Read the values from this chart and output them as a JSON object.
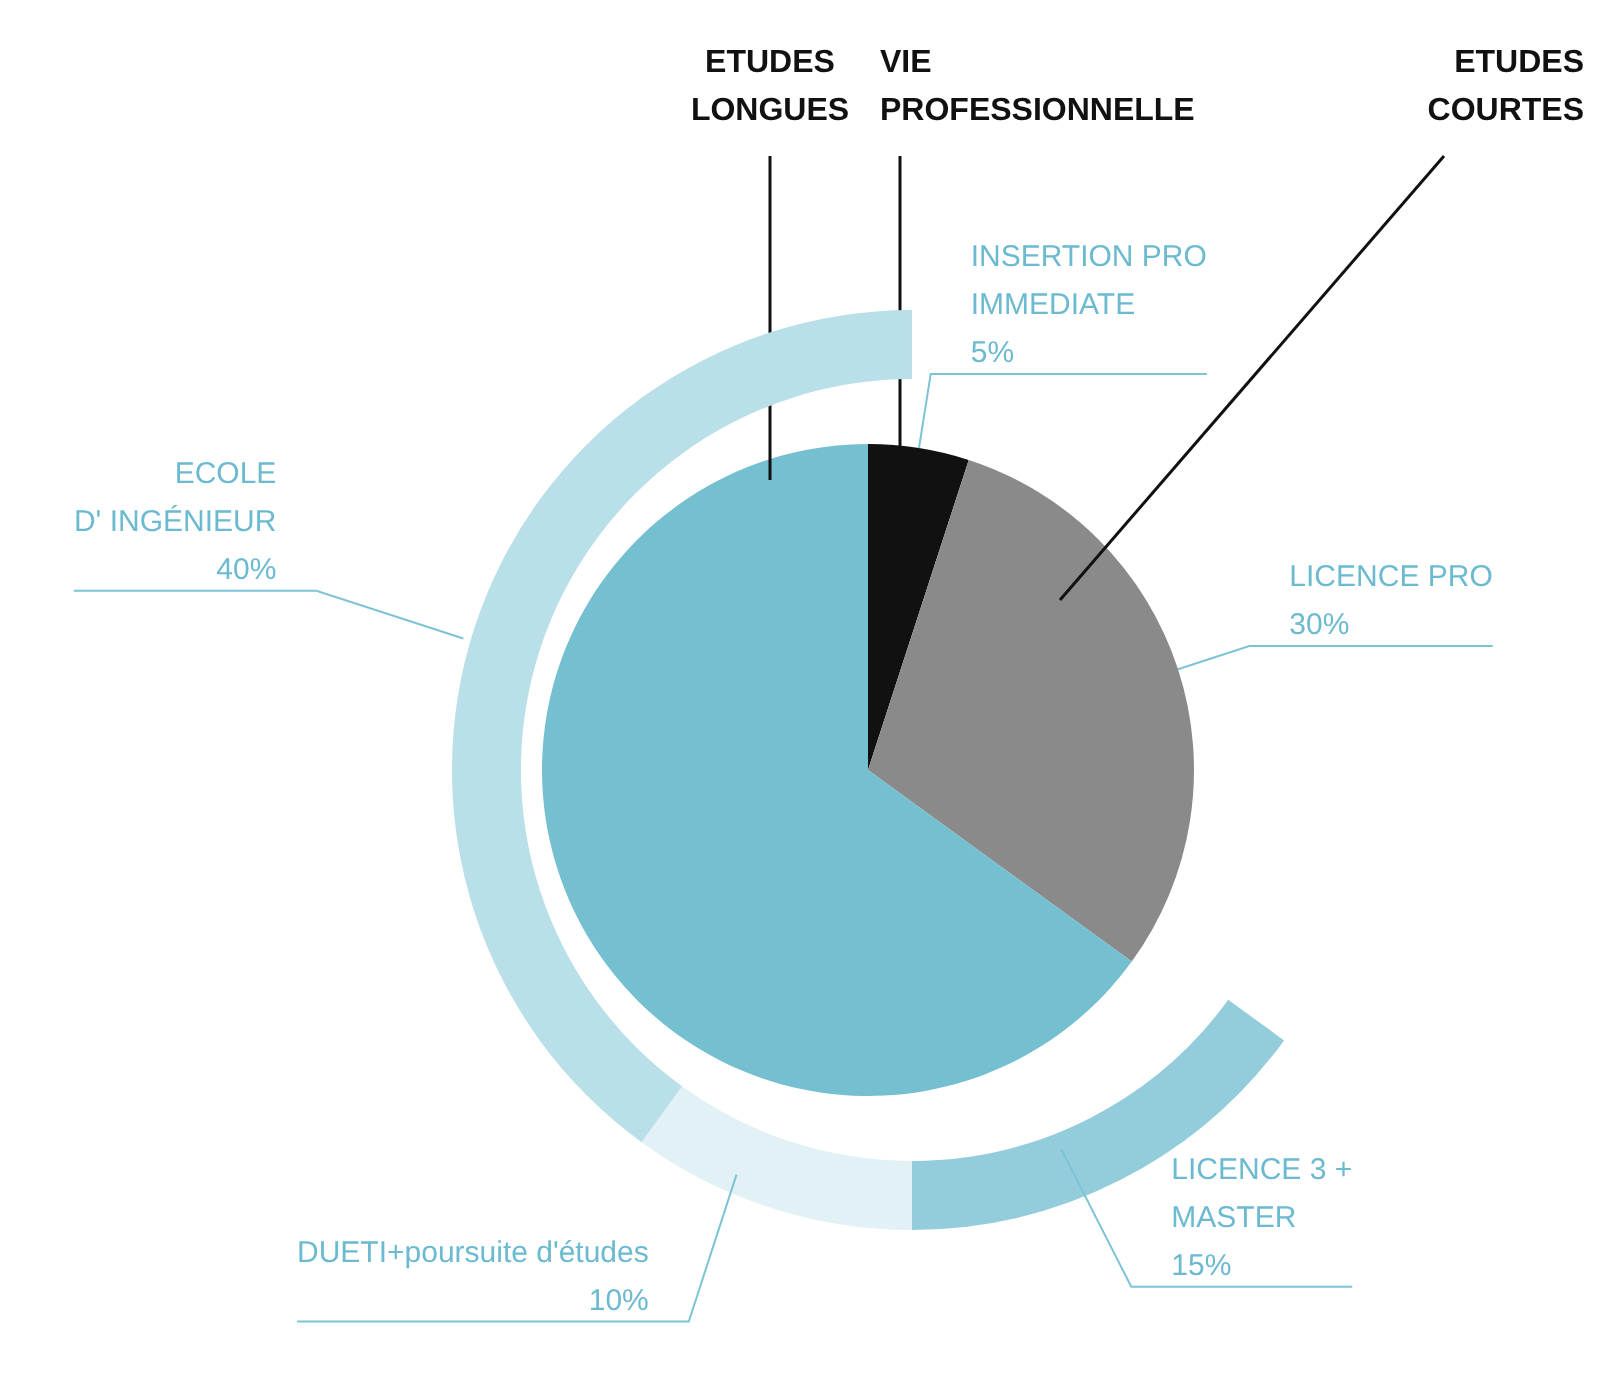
{
  "chart_data": [
    {
      "type": "pie",
      "categories": [
        "VIE\nPROFESSIONNELLE",
        "ETUDES\nCOURTES",
        "ETUDES\nLONGUES"
      ],
      "values": [
        5,
        30,
        65
      ],
      "colors": [
        "#111111",
        "#8a8a8a",
        "#74bfd0"
      ],
      "annotations": [
        {
          "text": "INSERTION PRO\nIMMEDIATE\n5%",
          "x": "VIE\nPROFESSIONNELLE"
        },
        {
          "text": "LICENCE PRO\n30%",
          "x": "ETUDES\nCOURTES"
        }
      ]
    },
    {
      "type": "donut",
      "categories": [
        "LICENCE 3 +\nMASTER",
        "DUETI+poursuite d'études",
        "ECOLE\nD' INGÉNIEUR"
      ],
      "values": [
        15,
        10,
        40
      ],
      "colors": [
        "#93cddb",
        "#e1f1f6",
        "#b9dfe8"
      ],
      "value_labels": [
        "15%",
        "10%",
        "40%"
      ]
    }
  ]
}
